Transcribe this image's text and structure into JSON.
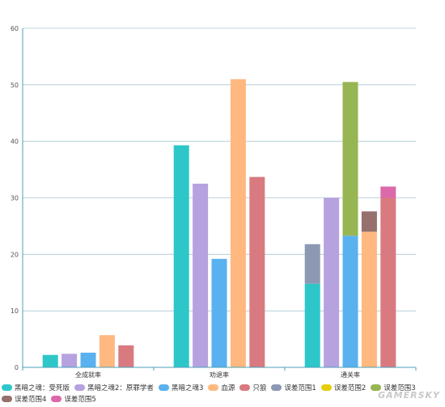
{
  "chart_data": {
    "type": "bar",
    "title": "",
    "xlabel": "",
    "ylabel": "",
    "ylim": [
      0,
      60
    ],
    "yticks": [
      0,
      10,
      20,
      30,
      40,
      50,
      60
    ],
    "grid": true,
    "legend_position": "bottom",
    "categories": [
      "全成就率",
      "劝退率",
      "通关率"
    ],
    "series": [
      {
        "name": "黑暗之魂：受死版",
        "color": "#2ec7c9",
        "values": [
          2.2,
          39.3,
          14.8
        ]
      },
      {
        "name": "黑暗之魂2：原罪学者",
        "color": "#b6a2de",
        "values": [
          2.4,
          32.5,
          30.0
        ]
      },
      {
        "name": "黑暗之魂3",
        "color": "#5ab1ef",
        "values": [
          2.6,
          19.2,
          23.3
        ]
      },
      {
        "name": "血源",
        "color": "#ffb980",
        "values": [
          5.7,
          51.0,
          24.0
        ]
      },
      {
        "name": "只狼",
        "color": "#d87a80",
        "values": [
          3.9,
          33.7,
          30.0
        ]
      }
    ],
    "error_ranges": [
      {
        "name": "误差范围1",
        "color": "#8d98b3",
        "series_index": 0,
        "category_index": 2,
        "from": 14.8,
        "to": 21.8
      },
      {
        "name": "误差范围2",
        "color": "#e5cf0d",
        "series_index": 1,
        "category_index": 2,
        "from": 30.0,
        "to": 30.0
      },
      {
        "name": "误差范围3",
        "color": "#97b552",
        "series_index": 2,
        "category_index": 2,
        "from": 23.3,
        "to": 50.5
      },
      {
        "name": "误差范围4",
        "color": "#95706d",
        "series_index": 3,
        "category_index": 2,
        "from": 24.0,
        "to": 27.6
      },
      {
        "name": "误差范围5",
        "color": "#dc69aa",
        "series_index": 4,
        "category_index": 2,
        "from": 30.0,
        "to": 32.0
      }
    ]
  },
  "watermark": "GAMERSKY"
}
